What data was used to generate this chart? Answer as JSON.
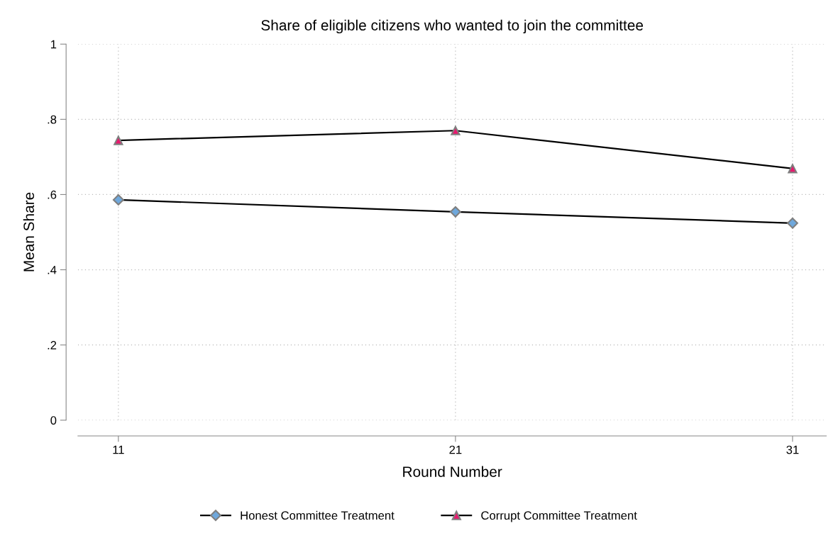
{
  "chart_data": {
    "type": "line",
    "title": "Share of eligible citizens who wanted to join the committee",
    "xlabel": "Round Number",
    "ylabel": "Mean Share",
    "x": [
      11,
      21,
      31
    ],
    "series": [
      {
        "name": "Honest Committee Treatment",
        "color": "#6fa8dc",
        "marker": "diamond",
        "values": [
          0.586,
          0.554,
          0.524
        ]
      },
      {
        "name": "Corrupt Committee Treatment",
        "color": "#e8196e",
        "marker": "triangle",
        "values": [
          0.744,
          0.77,
          0.669
        ]
      }
    ],
    "xlim": [
      9.8,
      32.0
    ],
    "xticks": [
      11,
      21,
      31
    ],
    "ylim": [
      0,
      1
    ],
    "yticks": [
      {
        "value": 0,
        "label": "0"
      },
      {
        "value": 0.2,
        "label": ".2"
      },
      {
        "value": 0.4,
        "label": ".4"
      },
      {
        "value": 0.6,
        "label": ".6"
      },
      {
        "value": 0.8,
        "label": ".8"
      },
      {
        "value": 1,
        "label": "1"
      }
    ],
    "grid": true,
    "legend": "bottom",
    "line_style": "solid"
  }
}
